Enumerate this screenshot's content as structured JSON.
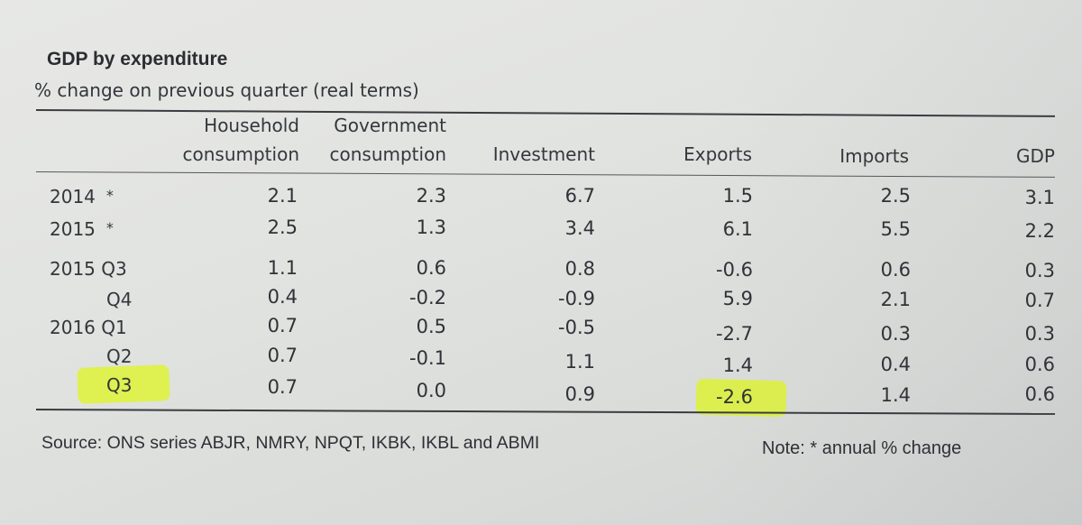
{
  "title": "GDP by expenditure",
  "subtitle": "% change on previous quarter (real terms)",
  "headers": {
    "household_line1": "Household",
    "household_line2": "consumption",
    "government_line1": "Government",
    "government_line2": "consumption",
    "investment": "Investment",
    "exports": "Exports",
    "imports": "Imports",
    "gdp": "GDP"
  },
  "rows": [
    {
      "label": "2014",
      "note": "*",
      "values": [
        "2.1",
        "2.3",
        "6.7",
        "1.5",
        "2.5",
        "3.1"
      ]
    },
    {
      "label": "2015",
      "note": "*",
      "values": [
        "2.5",
        "1.3",
        "3.4",
        "6.1",
        "5.5",
        "2.2"
      ]
    },
    {
      "label": "2015 Q3",
      "note": "",
      "values": [
        "1.1",
        "0.6",
        "0.8",
        "-0.6",
        "0.6",
        "0.3"
      ]
    },
    {
      "label": "Q4",
      "note": "",
      "values": [
        "0.4",
        "-0.2",
        "-0.9",
        "5.9",
        "2.1",
        "0.7"
      ]
    },
    {
      "label": "2016 Q1",
      "note": "",
      "values": [
        "0.7",
        "0.5",
        "-0.5",
        "-2.7",
        "0.3",
        "0.3"
      ]
    },
    {
      "label": "Q2",
      "note": "",
      "values": [
        "0.7",
        "-0.1",
        "1.1",
        "1.4",
        "0.4",
        "0.6"
      ]
    },
    {
      "label": "Q3",
      "note": "",
      "values": [
        "0.7",
        "0.0",
        "0.9",
        "-2.6",
        "1.4",
        "0.6"
      ]
    }
  ],
  "highlight_color": "#dff528",
  "source": "Source: ONS series ABJR, NMRY, NPQT, IKBK, IKBL and ABMI",
  "footnote": "Note: * annual % change"
}
